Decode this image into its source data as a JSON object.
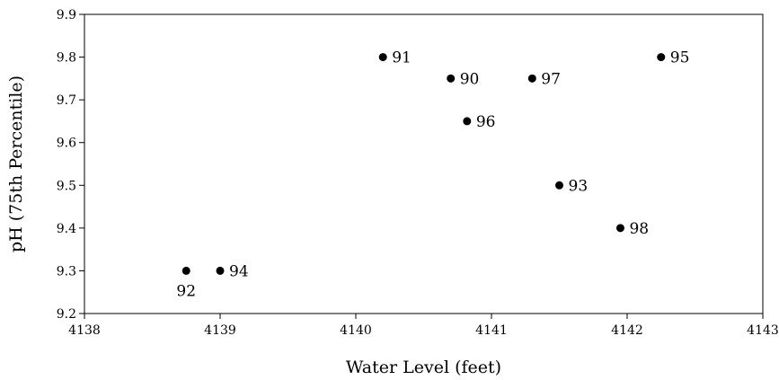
{
  "chart_data": {
    "type": "scatter",
    "title": "",
    "xlabel": "Water Level (feet)",
    "ylabel": "pH (75th Percentile)",
    "xlim": [
      4138,
      4143
    ],
    "ylim": [
      9.2,
      9.9
    ],
    "xticks": [
      4138,
      4139,
      4140,
      4141,
      4142,
      4143
    ],
    "xtick_labels": [
      "4138",
      "4139",
      "4140",
      "4141",
      "4142",
      "4143"
    ],
    "yticks": [
      9.2,
      9.3,
      9.4,
      9.5,
      9.6,
      9.7,
      9.8,
      9.9
    ],
    "ytick_labels": [
      "9.2",
      "9.3",
      "9.4",
      "9.5",
      "9.6",
      "9.7",
      "9.8",
      "9.9"
    ],
    "grid": false,
    "marker_color": "#000000",
    "points": [
      {
        "label": "90",
        "x": 4140.7,
        "y": 9.75,
        "label_position": "right"
      },
      {
        "label": "91",
        "x": 4140.2,
        "y": 9.8,
        "label_position": "right"
      },
      {
        "label": "92",
        "x": 4138.75,
        "y": 9.3,
        "label_position": "below"
      },
      {
        "label": "93",
        "x": 4141.5,
        "y": 9.5,
        "label_position": "right"
      },
      {
        "label": "94",
        "x": 4139.0,
        "y": 9.3,
        "label_position": "right"
      },
      {
        "label": "95",
        "x": 4142.25,
        "y": 9.8,
        "label_position": "right"
      },
      {
        "label": "96",
        "x": 4140.82,
        "y": 9.65,
        "label_position": "right"
      },
      {
        "label": "97",
        "x": 4141.3,
        "y": 9.75,
        "label_position": "right"
      },
      {
        "label": "98",
        "x": 4141.95,
        "y": 9.4,
        "label_position": "right"
      }
    ]
  }
}
